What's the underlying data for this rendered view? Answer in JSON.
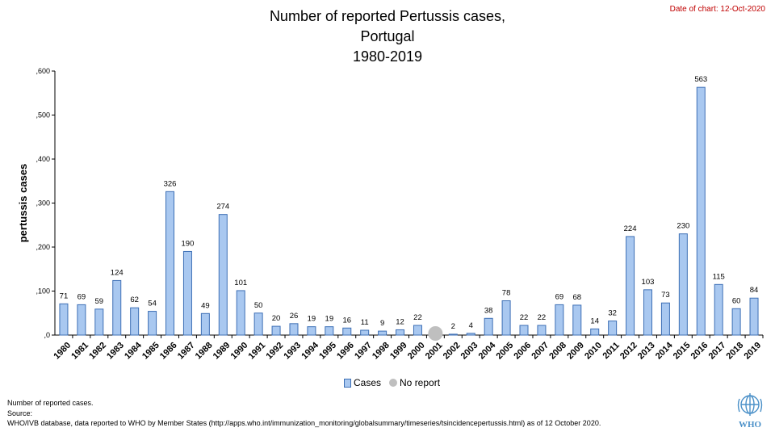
{
  "header": {
    "title_lines": [
      "Number of reported Pertussis cases,",
      "Portugal",
      "1980-2019"
    ],
    "date_of_chart": "Date of chart: 12-Oct-2020"
  },
  "chart_data": {
    "type": "bar",
    "title": "Number of reported Pertussis cases, Portugal 1980-2019",
    "ylabel": "pertussis cases",
    "xlabel": "",
    "ylim": [
      0,
      600
    ],
    "yticks": [
      0,
      100,
      200,
      300,
      400,
      500,
      600
    ],
    "ytick_labels": [
      ",0",
      ",100",
      ",200",
      ",300",
      ",400",
      ",500",
      ",600"
    ],
    "categories": [
      "1980",
      "1981",
      "1982",
      "1983",
      "1984",
      "1985",
      "1986",
      "1987",
      "1988",
      "1989",
      "1990",
      "1991",
      "1992",
      "1993",
      "1994",
      "1995",
      "1996",
      "1997",
      "1998",
      "1999",
      "2000",
      "2001",
      "2002",
      "2003",
      "2004",
      "2005",
      "2006",
      "2007",
      "2008",
      "2009",
      "2010",
      "2011",
      "2012",
      "2013",
      "2014",
      "2015",
      "2016",
      "2017",
      "2018",
      "2019"
    ],
    "series": [
      {
        "name": "Cases",
        "color": "#a9c8f0",
        "edge": "#3d6fb5",
        "values": [
          71,
          69,
          59,
          124,
          62,
          54,
          326,
          190,
          49,
          274,
          101,
          50,
          20,
          26,
          19,
          19,
          16,
          11,
          9,
          12,
          22,
          null,
          2,
          4,
          38,
          78,
          22,
          22,
          69,
          68,
          14,
          32,
          224,
          103,
          73,
          230,
          563,
          115,
          60,
          84
        ]
      }
    ],
    "no_report": {
      "name": "No report",
      "color": "#bfbfbf",
      "categories": [
        "2001"
      ]
    },
    "legend": "bottom-center",
    "grid": false
  },
  "legend": {
    "cases_label": "Cases",
    "no_report_label": "No report"
  },
  "notes": {
    "line1": "Number of reported cases.",
    "line2": "Source:",
    "line3": "WHO/IVB database, data reported to WHO by Member States (http://apps.who.int/immunization_monitoring/globalsummary/timeseries/tsincidencepertussis.html) as of 12 October 2020."
  },
  "logo": {
    "text": "WHO",
    "color": "#4a90c8"
  }
}
